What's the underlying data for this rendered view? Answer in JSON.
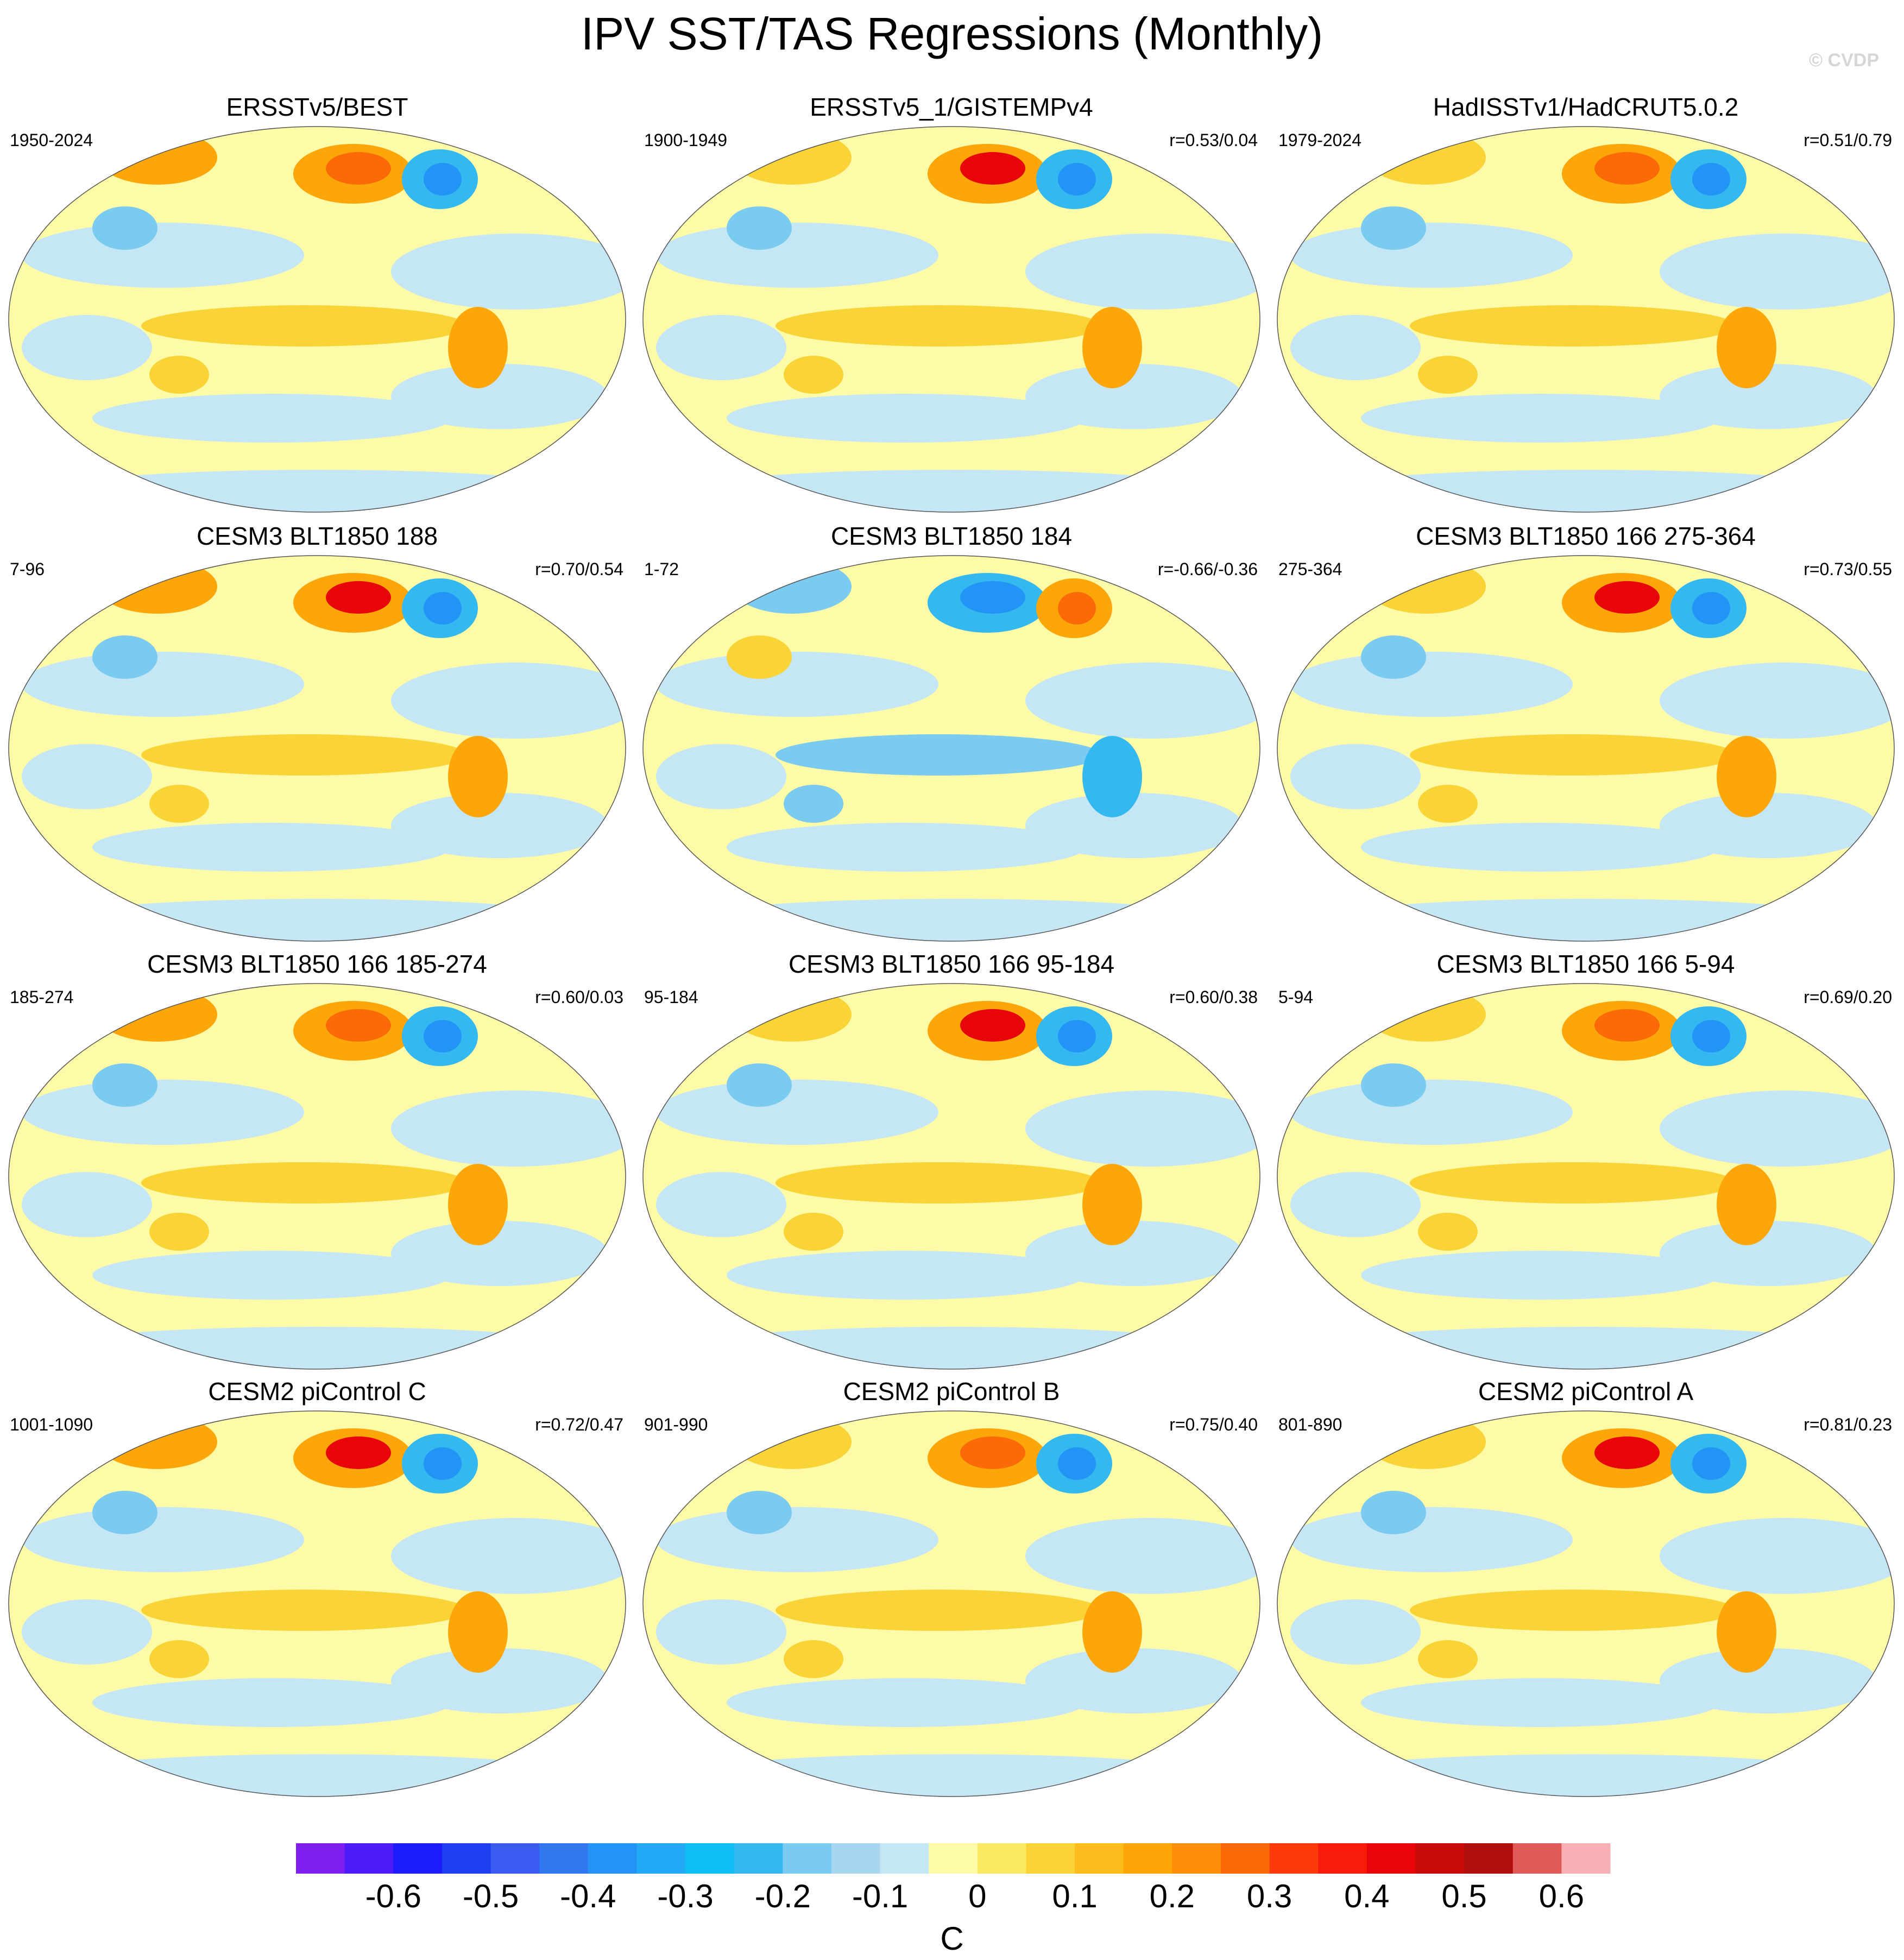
{
  "title": "IPV SST/TAS Regressions (Monthly)",
  "credit": "© CVDP",
  "chart_data": [
    {
      "type": "heatmap",
      "title": "ERSSTv5/BEST",
      "years": "1950-2024",
      "corr": "",
      "variable": "SST/TAS regression onto IPV index"
    },
    {
      "type": "heatmap",
      "title": "ERSSTv5_1/GISTEMPv4",
      "years": "1900-1949",
      "corr": "r=0.53/0.04",
      "variable": "SST/TAS regression onto IPV index"
    },
    {
      "type": "heatmap",
      "title": "HadISSTv1/HadCRUT5.0.2",
      "years": "1979-2024",
      "corr": "r=0.51/0.79",
      "variable": "SST/TAS regression onto IPV index"
    },
    {
      "type": "heatmap",
      "title": "CESM3 BLT1850 188",
      "years": "7-96",
      "corr": "r=0.70/0.54",
      "variable": "SST/TAS regression onto IPV index"
    },
    {
      "type": "heatmap",
      "title": "CESM3 BLT1850 184",
      "years": "1-72",
      "corr": "r=-0.66/-0.36",
      "variable": "SST/TAS regression onto IPV index"
    },
    {
      "type": "heatmap",
      "title": "CESM3 BLT1850 166 275-364",
      "years": "275-364",
      "corr": "r=0.73/0.55",
      "variable": "SST/TAS regression onto IPV index"
    },
    {
      "type": "heatmap",
      "title": "CESM3 BLT1850 166 185-274",
      "years": "185-274",
      "corr": "r=0.60/0.03",
      "variable": "SST/TAS regression onto IPV index"
    },
    {
      "type": "heatmap",
      "title": "CESM3 BLT1850 166 95-184",
      "years": "95-184",
      "corr": "r=0.60/0.38",
      "variable": "SST/TAS regression onto IPV index"
    },
    {
      "type": "heatmap",
      "title": "CESM3 BLT1850 166 5-94",
      "years": "5-94",
      "corr": "r=0.69/0.20",
      "variable": "SST/TAS regression onto IPV index"
    },
    {
      "type": "heatmap",
      "title": "CESM2 piControl C",
      "years": "1001-1090",
      "corr": "r=0.72/0.47",
      "variable": "SST/TAS regression onto IPV index"
    },
    {
      "type": "heatmap",
      "title": "CESM2 piControl B",
      "years": "901-990",
      "corr": "r=0.75/0.40",
      "variable": "SST/TAS regression onto IPV index"
    },
    {
      "type": "heatmap",
      "title": "CESM2 piControl A",
      "years": "801-890",
      "corr": "r=0.81/0.23",
      "variable": "SST/TAS regression onto IPV index"
    }
  ],
  "colorbar": {
    "label": "C",
    "ticks": [
      "-0.6",
      "-0.5",
      "-0.4",
      "-0.3",
      "-0.2",
      "-0.1",
      "0",
      "0.1",
      "0.2",
      "0.3",
      "0.4",
      "0.5",
      "0.6"
    ],
    "colors": [
      "#7f1ff0",
      "#4b1cf5",
      "#1c1cfa",
      "#1e3ef0",
      "#3a5cf0",
      "#3377f0",
      "#2294f5",
      "#22aaf7",
      "#0fbef7",
      "#33b8ef",
      "#7bcaf0",
      "#a6d6f0",
      "#c4e6f5",
      "#fefba8",
      "#fbe863",
      "#fad436",
      "#fcbc1c",
      "#fca60a",
      "#fc8e08",
      "#fc6a08",
      "#fc3a0a",
      "#f81a0a",
      "#e8050a",
      "#c80a0a",
      "#b00d0d",
      "#e05a5a",
      "#f8b0b4"
    ]
  }
}
